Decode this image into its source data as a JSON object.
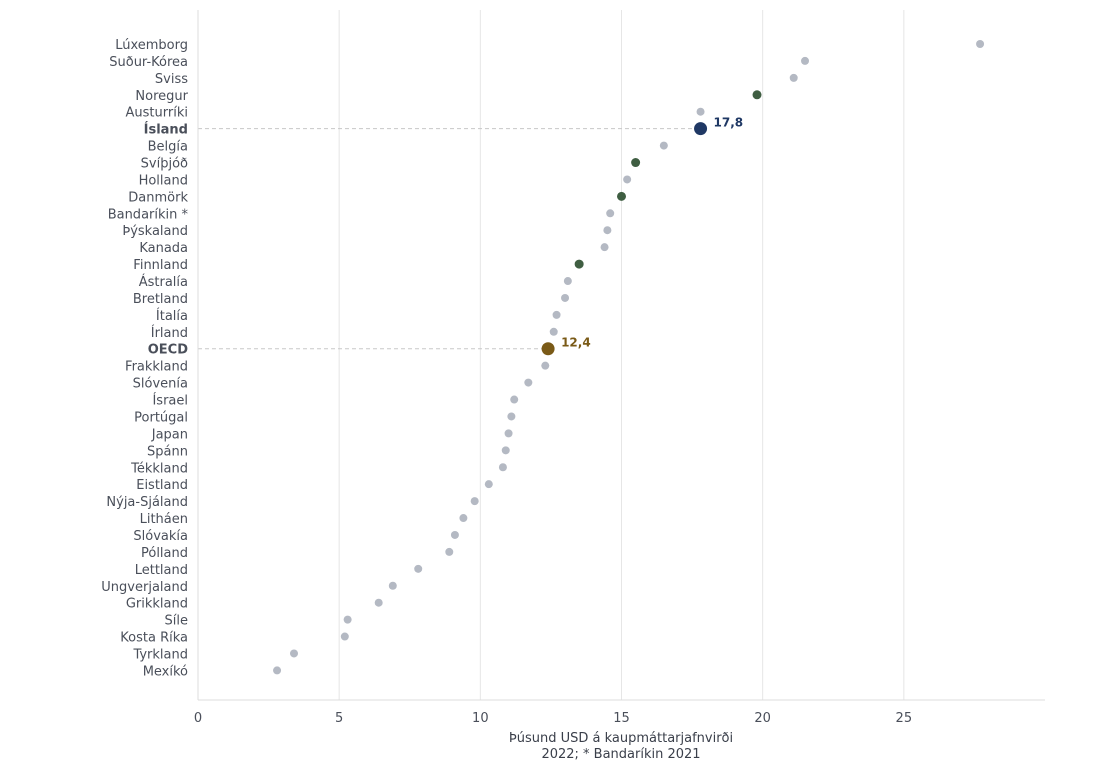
{
  "chart_data": {
    "type": "scatter",
    "orientation": "horizontal-dot",
    "xlabel": "Þúsund USD á kaupmáttarjafnvirði",
    "xlabel_sub": "2022; * Bandaríkin 2021",
    "xlim": [
      0,
      30
    ],
    "xticks": [
      0,
      5,
      10,
      15,
      20,
      25
    ],
    "grid": "vertical",
    "colors": {
      "default": "#b4b9c3",
      "nordic": "#3f5e42",
      "iceland": "#1f3864",
      "oecd": "#7a5a17",
      "label": "#4a4f5a"
    },
    "points": [
      {
        "label": "Lúxemborg",
        "value": 27.7,
        "group": "default"
      },
      {
        "label": "Suður-Kórea",
        "value": 21.5,
        "group": "default"
      },
      {
        "label": "Sviss",
        "value": 21.1,
        "group": "default"
      },
      {
        "label": "Noregur",
        "value": 19.8,
        "group": "nordic"
      },
      {
        "label": "Austurríki",
        "value": 17.8,
        "group": "default"
      },
      {
        "label": "Ísland",
        "value": 17.8,
        "group": "iceland",
        "value_label": "17,8"
      },
      {
        "label": "Belgía",
        "value": 16.5,
        "group": "default"
      },
      {
        "label": "Svíþjóð",
        "value": 15.5,
        "group": "nordic"
      },
      {
        "label": "Holland",
        "value": 15.2,
        "group": "default"
      },
      {
        "label": "Danmörk",
        "value": 15.0,
        "group": "nordic"
      },
      {
        "label": "Bandaríkin *",
        "value": 14.6,
        "group": "default"
      },
      {
        "label": "Þýskaland",
        "value": 14.5,
        "group": "default"
      },
      {
        "label": "Kanada",
        "value": 14.4,
        "group": "default"
      },
      {
        "label": "Finnland",
        "value": 13.5,
        "group": "nordic"
      },
      {
        "label": "Ástralía",
        "value": 13.1,
        "group": "default"
      },
      {
        "label": "Bretland",
        "value": 13.0,
        "group": "default"
      },
      {
        "label": "Ítalía",
        "value": 12.7,
        "group": "default"
      },
      {
        "label": "Írland",
        "value": 12.6,
        "group": "default"
      },
      {
        "label": "OECD",
        "value": 12.4,
        "group": "oecd",
        "value_label": "12,4"
      },
      {
        "label": "Frakkland",
        "value": 12.3,
        "group": "default"
      },
      {
        "label": "Slóvenía",
        "value": 11.7,
        "group": "default"
      },
      {
        "label": "Ísrael",
        "value": 11.2,
        "group": "default"
      },
      {
        "label": "Portúgal",
        "value": 11.1,
        "group": "default"
      },
      {
        "label": "Japan",
        "value": 11.0,
        "group": "default"
      },
      {
        "label": "Spánn",
        "value": 10.9,
        "group": "default"
      },
      {
        "label": "Tékkland",
        "value": 10.8,
        "group": "default"
      },
      {
        "label": "Eistland",
        "value": 10.3,
        "group": "default"
      },
      {
        "label": "Nýja-Sjáland",
        "value": 9.8,
        "group": "default"
      },
      {
        "label": "Litháen",
        "value": 9.4,
        "group": "default"
      },
      {
        "label": "Slóvakía",
        "value": 9.1,
        "group": "default"
      },
      {
        "label": "Pólland",
        "value": 8.9,
        "group": "default"
      },
      {
        "label": "Lettland",
        "value": 7.8,
        "group": "default"
      },
      {
        "label": "Ungverjaland",
        "value": 6.9,
        "group": "default"
      },
      {
        "label": "Grikkland",
        "value": 6.4,
        "group": "default"
      },
      {
        "label": "Síle",
        "value": 5.3,
        "group": "default"
      },
      {
        "label": "Kosta Ríka",
        "value": 5.2,
        "group": "default"
      },
      {
        "label": "Tyrkland",
        "value": 3.4,
        "group": "default"
      },
      {
        "label": "Mexíkó",
        "value": 2.8,
        "group": "default"
      }
    ]
  }
}
